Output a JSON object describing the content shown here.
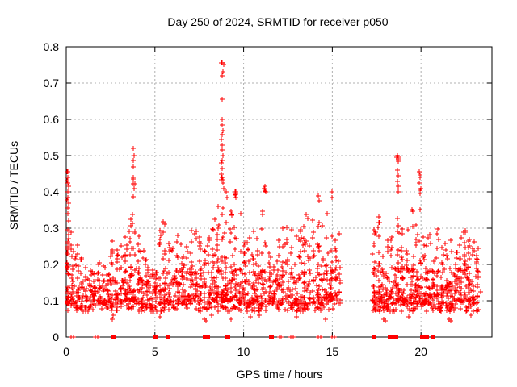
{
  "chart_data": {
    "type": "scatter",
    "title": "Day 250 of 2024, SRMTID for receiver p050",
    "xlabel": "GPS time / hours",
    "ylabel": "SRMTID / TECUs",
    "xlim": [
      0,
      24
    ],
    "ylim": [
      0,
      0.8
    ],
    "xticks": [
      0,
      5,
      10,
      15,
      20
    ],
    "yticks": [
      0,
      0.1,
      0.2,
      0.3,
      0.4,
      0.5,
      0.6,
      0.7,
      0.8
    ],
    "grid": true,
    "legend": "none",
    "marker": "plus",
    "colors": {
      "marker": "#ff0000",
      "grid": "#b0b0b0",
      "axis": "#000000",
      "text": "#000000",
      "background": "#ffffff"
    },
    "seed": 1337,
    "baseline_bands": [
      {
        "x0": 0.05,
        "x1": 15.45,
        "count": 430,
        "ymin": 0.07,
        "ymax": 0.185,
        "power": 1.3
      },
      {
        "x0": 17.28,
        "x1": 23.35,
        "count": 270,
        "ymin": 0.07,
        "ymax": 0.19,
        "power": 1.3
      }
    ],
    "columns": [
      [
        0.1,
        0.04,
        42,
        0.09,
        0.46,
        2.6
      ],
      [
        0.35,
        0.06,
        18,
        0.09,
        0.3,
        2
      ],
      [
        0.6,
        0.06,
        16,
        0.08,
        0.26,
        2
      ],
      [
        0.85,
        0.06,
        14,
        0.08,
        0.22,
        2
      ],
      [
        1.1,
        0.07,
        14,
        0.08,
        0.2,
        2
      ],
      [
        1.35,
        0.06,
        12,
        0.08,
        0.18,
        2
      ],
      [
        1.6,
        0.06,
        14,
        0.08,
        0.22,
        2
      ],
      [
        1.85,
        0.06,
        16,
        0.09,
        0.26,
        2
      ],
      [
        2.1,
        0.07,
        16,
        0.09,
        0.24,
        2
      ],
      [
        2.35,
        0.06,
        14,
        0.08,
        0.2,
        2
      ],
      [
        2.6,
        0.06,
        16,
        0.08,
        0.28,
        2
      ],
      [
        2.85,
        0.07,
        18,
        0.09,
        0.3,
        2
      ],
      [
        3.1,
        0.06,
        16,
        0.09,
        0.26,
        2
      ],
      [
        3.35,
        0.06,
        18,
        0.1,
        0.3,
        2
      ],
      [
        3.6,
        0.06,
        20,
        0.1,
        0.34,
        2
      ],
      [
        3.8,
        0.05,
        26,
        0.1,
        0.52,
        2.8
      ],
      [
        4.05,
        0.06,
        16,
        0.09,
        0.28,
        2
      ],
      [
        4.3,
        0.07,
        14,
        0.08,
        0.24,
        2
      ],
      [
        4.55,
        0.06,
        14,
        0.08,
        0.22,
        2
      ],
      [
        4.8,
        0.06,
        14,
        0.08,
        0.22,
        2
      ],
      [
        5.05,
        0.06,
        16,
        0.08,
        0.26,
        2
      ],
      [
        5.3,
        0.06,
        16,
        0.09,
        0.3,
        2
      ],
      [
        5.55,
        0.06,
        18,
        0.09,
        0.33,
        2
      ],
      [
        5.8,
        0.06,
        16,
        0.09,
        0.28,
        2
      ],
      [
        6.05,
        0.07,
        14,
        0.08,
        0.25,
        2
      ],
      [
        6.3,
        0.06,
        16,
        0.09,
        0.3,
        2
      ],
      [
        6.55,
        0.06,
        16,
        0.09,
        0.28,
        2
      ],
      [
        6.8,
        0.06,
        14,
        0.08,
        0.25,
        2
      ],
      [
        7.05,
        0.06,
        16,
        0.09,
        0.3,
        2
      ],
      [
        7.3,
        0.06,
        18,
        0.1,
        0.32,
        2
      ],
      [
        7.55,
        0.06,
        16,
        0.09,
        0.28,
        2
      ],
      [
        7.8,
        0.06,
        14,
        0.08,
        0.25,
        2
      ],
      [
        8.05,
        0.06,
        16,
        0.09,
        0.3,
        2
      ],
      [
        8.3,
        0.06,
        18,
        0.1,
        0.33,
        2
      ],
      [
        8.55,
        0.06,
        18,
        0.1,
        0.36,
        2
      ],
      [
        8.8,
        0.05,
        30,
        0.1,
        0.76,
        3.2
      ],
      [
        9.0,
        0.06,
        20,
        0.1,
        0.4,
        2.5
      ],
      [
        9.3,
        0.06,
        18,
        0.1,
        0.36,
        2
      ],
      [
        9.55,
        0.06,
        18,
        0.1,
        0.4,
        2.3
      ],
      [
        9.8,
        0.06,
        16,
        0.09,
        0.34,
        2
      ],
      [
        10.05,
        0.06,
        16,
        0.09,
        0.3,
        2
      ],
      [
        10.3,
        0.06,
        14,
        0.08,
        0.28,
        2
      ],
      [
        10.55,
        0.06,
        16,
        0.09,
        0.33,
        2
      ],
      [
        10.8,
        0.06,
        14,
        0.08,
        0.3,
        2
      ],
      [
        11.05,
        0.06,
        16,
        0.09,
        0.35,
        2
      ],
      [
        11.2,
        0.04,
        12,
        0.1,
        0.42,
        2.5
      ],
      [
        11.45,
        0.06,
        16,
        0.09,
        0.33,
        2
      ],
      [
        11.7,
        0.06,
        16,
        0.09,
        0.3,
        2
      ],
      [
        11.95,
        0.06,
        14,
        0.08,
        0.28,
        2
      ],
      [
        12.2,
        0.06,
        16,
        0.09,
        0.31,
        2
      ],
      [
        12.45,
        0.06,
        16,
        0.09,
        0.33,
        2
      ],
      [
        12.7,
        0.06,
        14,
        0.08,
        0.3,
        2
      ],
      [
        12.95,
        0.06,
        16,
        0.09,
        0.33,
        2
      ],
      [
        13.2,
        0.06,
        16,
        0.09,
        0.31,
        2
      ],
      [
        13.45,
        0.06,
        18,
        0.09,
        0.35,
        2
      ],
      [
        13.7,
        0.06,
        16,
        0.09,
        0.33,
        2
      ],
      [
        13.95,
        0.06,
        16,
        0.09,
        0.33,
        2
      ],
      [
        14.2,
        0.05,
        18,
        0.1,
        0.39,
        2.3
      ],
      [
        14.45,
        0.06,
        16,
        0.09,
        0.33,
        2
      ],
      [
        14.7,
        0.06,
        16,
        0.09,
        0.35,
        2
      ],
      [
        14.95,
        0.05,
        18,
        0.1,
        0.4,
        2.3
      ],
      [
        15.2,
        0.06,
        16,
        0.09,
        0.33,
        2
      ],
      [
        15.4,
        0.04,
        10,
        0.09,
        0.3,
        2
      ],
      [
        17.35,
        0.06,
        16,
        0.09,
        0.3,
        2
      ],
      [
        17.6,
        0.06,
        18,
        0.1,
        0.35,
        2
      ],
      [
        17.85,
        0.06,
        14,
        0.08,
        0.3,
        2
      ],
      [
        18.1,
        0.06,
        14,
        0.08,
        0.28,
        2
      ],
      [
        18.35,
        0.06,
        16,
        0.09,
        0.33,
        2
      ],
      [
        18.7,
        0.05,
        22,
        0.1,
        0.5,
        2.8
      ],
      [
        18.95,
        0.06,
        16,
        0.09,
        0.35,
        2
      ],
      [
        19.2,
        0.06,
        14,
        0.09,
        0.3,
        2
      ],
      [
        19.5,
        0.06,
        16,
        0.09,
        0.38,
        2.2
      ],
      [
        19.75,
        0.06,
        14,
        0.09,
        0.33,
        2
      ],
      [
        19.95,
        0.05,
        18,
        0.1,
        0.46,
        2.6
      ],
      [
        20.2,
        0.06,
        16,
        0.09,
        0.33,
        2
      ],
      [
        20.45,
        0.06,
        14,
        0.09,
        0.3,
        2
      ],
      [
        20.7,
        0.06,
        14,
        0.08,
        0.28,
        2
      ],
      [
        20.95,
        0.06,
        14,
        0.08,
        0.3,
        2
      ],
      [
        21.2,
        0.06,
        14,
        0.09,
        0.28,
        2
      ],
      [
        21.45,
        0.06,
        14,
        0.08,
        0.26,
        2
      ],
      [
        21.7,
        0.06,
        14,
        0.08,
        0.28,
        2
      ],
      [
        21.95,
        0.06,
        16,
        0.09,
        0.3,
        2
      ],
      [
        22.2,
        0.06,
        16,
        0.1,
        0.28,
        1.8
      ],
      [
        22.45,
        0.06,
        18,
        0.1,
        0.3,
        1.8
      ],
      [
        22.7,
        0.06,
        16,
        0.1,
        0.28,
        1.8
      ],
      [
        22.95,
        0.06,
        16,
        0.09,
        0.28,
        1.8
      ],
      [
        23.2,
        0.05,
        14,
        0.09,
        0.26,
        1.8
      ]
    ],
    "points": [
      [
        8.76,
        0.755
      ],
      [
        8.79,
        0.72
      ],
      [
        8.78,
        0.655
      ],
      [
        8.8,
        0.6
      ],
      [
        8.77,
        0.585
      ],
      [
        8.82,
        0.57
      ],
      [
        8.75,
        0.545
      ],
      [
        8.8,
        0.53
      ],
      [
        8.78,
        0.515
      ],
      [
        8.83,
        0.5
      ],
      [
        8.76,
        0.48
      ],
      [
        8.81,
        0.465
      ],
      [
        8.74,
        0.45
      ],
      [
        8.8,
        0.44
      ],
      [
        8.85,
        0.425
      ],
      [
        8.9,
        0.41
      ],
      [
        3.78,
        0.52
      ],
      [
        3.81,
        0.5
      ],
      [
        3.77,
        0.47
      ],
      [
        3.8,
        0.44
      ],
      [
        3.76,
        0.435
      ],
      [
        3.82,
        0.41
      ],
      [
        0.08,
        0.455
      ],
      [
        0.1,
        0.44
      ],
      [
        0.09,
        0.425
      ],
      [
        0.12,
        0.415
      ],
      [
        0.07,
        0.4
      ],
      [
        0.1,
        0.385
      ],
      [
        0.12,
        0.37
      ],
      [
        0.08,
        0.355
      ],
      [
        0.1,
        0.34
      ],
      [
        18.66,
        0.5
      ],
      [
        18.7,
        0.485
      ],
      [
        18.68,
        0.46
      ],
      [
        18.73,
        0.445
      ],
      [
        18.67,
        0.43
      ],
      [
        18.71,
        0.415
      ],
      [
        18.74,
        0.4
      ],
      [
        19.9,
        0.455
      ],
      [
        19.94,
        0.44
      ],
      [
        19.91,
        0.425
      ],
      [
        19.97,
        0.41
      ],
      [
        19.93,
        0.395
      ],
      [
        11.2,
        0.415
      ],
      [
        11.23,
        0.4
      ],
      [
        14.2,
        0.39
      ],
      [
        14.24,
        0.375
      ],
      [
        14.97,
        0.4
      ],
      [
        15.0,
        0.385
      ],
      [
        9.55,
        0.4
      ],
      [
        9.58,
        0.385
      ],
      [
        9.02,
        0.4
      ],
      [
        9.05,
        0.385
      ],
      [
        2.6,
        0.05
      ],
      [
        2.62,
        0.06
      ],
      [
        5.3,
        0.055
      ],
      [
        7.8,
        0.05
      ],
      [
        7.9,
        0.045
      ],
      [
        8.2,
        0.06
      ],
      [
        9.3,
        0.05
      ],
      [
        10.4,
        0.055
      ],
      [
        10.9,
        0.06
      ],
      [
        13.0,
        0.055
      ],
      [
        14.6,
        0.05
      ],
      [
        17.9,
        0.05
      ],
      [
        18.0,
        0.045
      ],
      [
        19.3,
        0.055
      ],
      [
        21.6,
        0.05
      ],
      [
        21.7,
        0.045
      ],
      [
        22.8,
        0.06
      ]
    ],
    "zero_squares": [
      2.67,
      5.07,
      5.72,
      7.82,
      7.97,
      9.1,
      11.58,
      17.33,
      18.27,
      18.6,
      20.1,
      20.3,
      20.68
    ],
    "zero_plus": [
      0.28,
      0.43,
      1.64,
      1.79,
      12.0,
      12.13,
      12.68,
      12.8,
      14.22,
      14.33,
      14.97,
      15.1
    ]
  }
}
